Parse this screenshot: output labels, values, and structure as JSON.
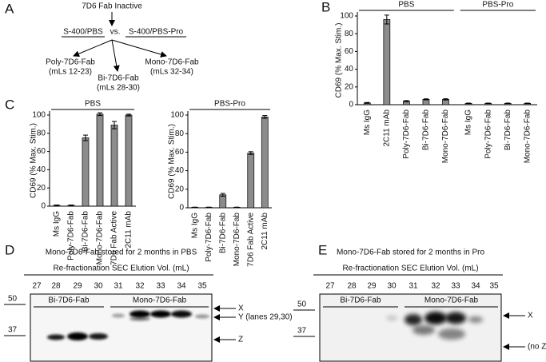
{
  "panel_a": {
    "label": "A",
    "top": "7D6 Fab Inactive",
    "left_condition": "S-400/PBS",
    "vs": "vs.",
    "right_condition": "S-400/PBS-Pro",
    "outputs": [
      {
        "name": "Poly-7D6-Fab",
        "fractions": "(mLs 12-23)"
      },
      {
        "name": "Bi-7D6-Fab",
        "fractions": "(mLs 28-30)"
      },
      {
        "name": "Mono-7D6-Fab",
        "fractions": "(mLs 32-34)"
      }
    ]
  },
  "chart_data": [
    {
      "type": "bar",
      "label": "B",
      "ylabel": "CD69 (% Max. Stim.)",
      "ylim": [
        0,
        100
      ],
      "yticks": [
        0,
        20,
        40,
        60,
        80,
        100
      ],
      "color": "#8c8c8c",
      "groups": [
        {
          "name": "PBS",
          "categories": [
            "Ms IgG",
            "2C11 mAb",
            "Poly-7D6-Fab",
            "Bi-7D6-Fab",
            "Mono-7D6-Fab"
          ],
          "values": [
            2,
            96,
            4,
            6,
            6
          ],
          "errors": [
            0.5,
            5,
            0.6,
            0.6,
            0.7
          ]
        },
        {
          "name": "PBS-Pro",
          "categories": [
            "Ms IgG",
            "Poly-7D6-Fab",
            "Bi-7D6-Fab",
            "Mono-7D6-Fab"
          ],
          "values": [
            1.5,
            1.5,
            1.5,
            1.5
          ],
          "errors": [
            0.3,
            0.3,
            0.3,
            0.3
          ]
        }
      ]
    },
    {
      "type": "bar",
      "label": "C",
      "ylabel": "CD69 (% Max. Stim.)",
      "ylim": [
        0,
        100
      ],
      "yticks": [
        0,
        20,
        40,
        60,
        80,
        100
      ],
      "color": "#8c8c8c",
      "groups": [
        {
          "name": "PBS",
          "categories": [
            "Ms IgG",
            "Poly-7D6-Fab",
            "Bi-7D6-Fab",
            "Mono-7D6-Fab",
            "7D6 Fab Active",
            "2C11 mAb"
          ],
          "values": [
            1,
            1,
            75,
            101,
            89,
            100
          ],
          "errors": [
            0.3,
            0.3,
            3,
            1.5,
            4,
            1
          ]
        }
      ]
    },
    {
      "type": "bar",
      "ylabel": "CD69 (% Max. Stim.)",
      "ylim": [
        0,
        100
      ],
      "yticks": [
        0,
        20,
        40,
        60,
        80,
        100
      ],
      "color": "#8c8c8c",
      "groups": [
        {
          "name": "PBS-Pro",
          "categories": [
            "Ms IgG",
            "Poly-7D6-Fab",
            "Bi-7D6-Fab",
            "Mono-7D6-Fab",
            "7D6 Fab Active",
            "2C11 mAb"
          ],
          "values": [
            0.5,
            0.5,
            14,
            0.5,
            59,
            98
          ],
          "errors": [
            0.2,
            0.2,
            1.5,
            0.2,
            1.5,
            1.5
          ]
        }
      ]
    }
  ],
  "gels": [
    {
      "label": "D",
      "title": "Mono-7D6-Fab stored for 2 months in PBS",
      "subtitle": "Re-fractionation SEC Elution Vol. (mL)",
      "lanes": [
        "27",
        "28",
        "29",
        "30",
        "31",
        "32",
        "33",
        "34",
        "35"
      ],
      "markers": [
        "50",
        "37"
      ],
      "groups": [
        "Bi-7D6-Fab",
        "Mono-7D6-Fab"
      ],
      "arrows": [
        "X",
        "Y (lanes 29,30)",
        "Z"
      ]
    },
    {
      "label": "E",
      "title": "Mono-7D6-Fab stored for 2 months in Pro",
      "subtitle": "Re-fractionation SEC Elution Vol. (mL)",
      "lanes": [
        "27",
        "28",
        "29",
        "30",
        "31",
        "32",
        "33",
        "34",
        "35"
      ],
      "markers": [
        "50",
        "37"
      ],
      "groups": [
        "Bi-7D6-Fab",
        "Mono-7D6-Fab"
      ],
      "arrows": [
        "X",
        "(no Z)"
      ]
    }
  ]
}
